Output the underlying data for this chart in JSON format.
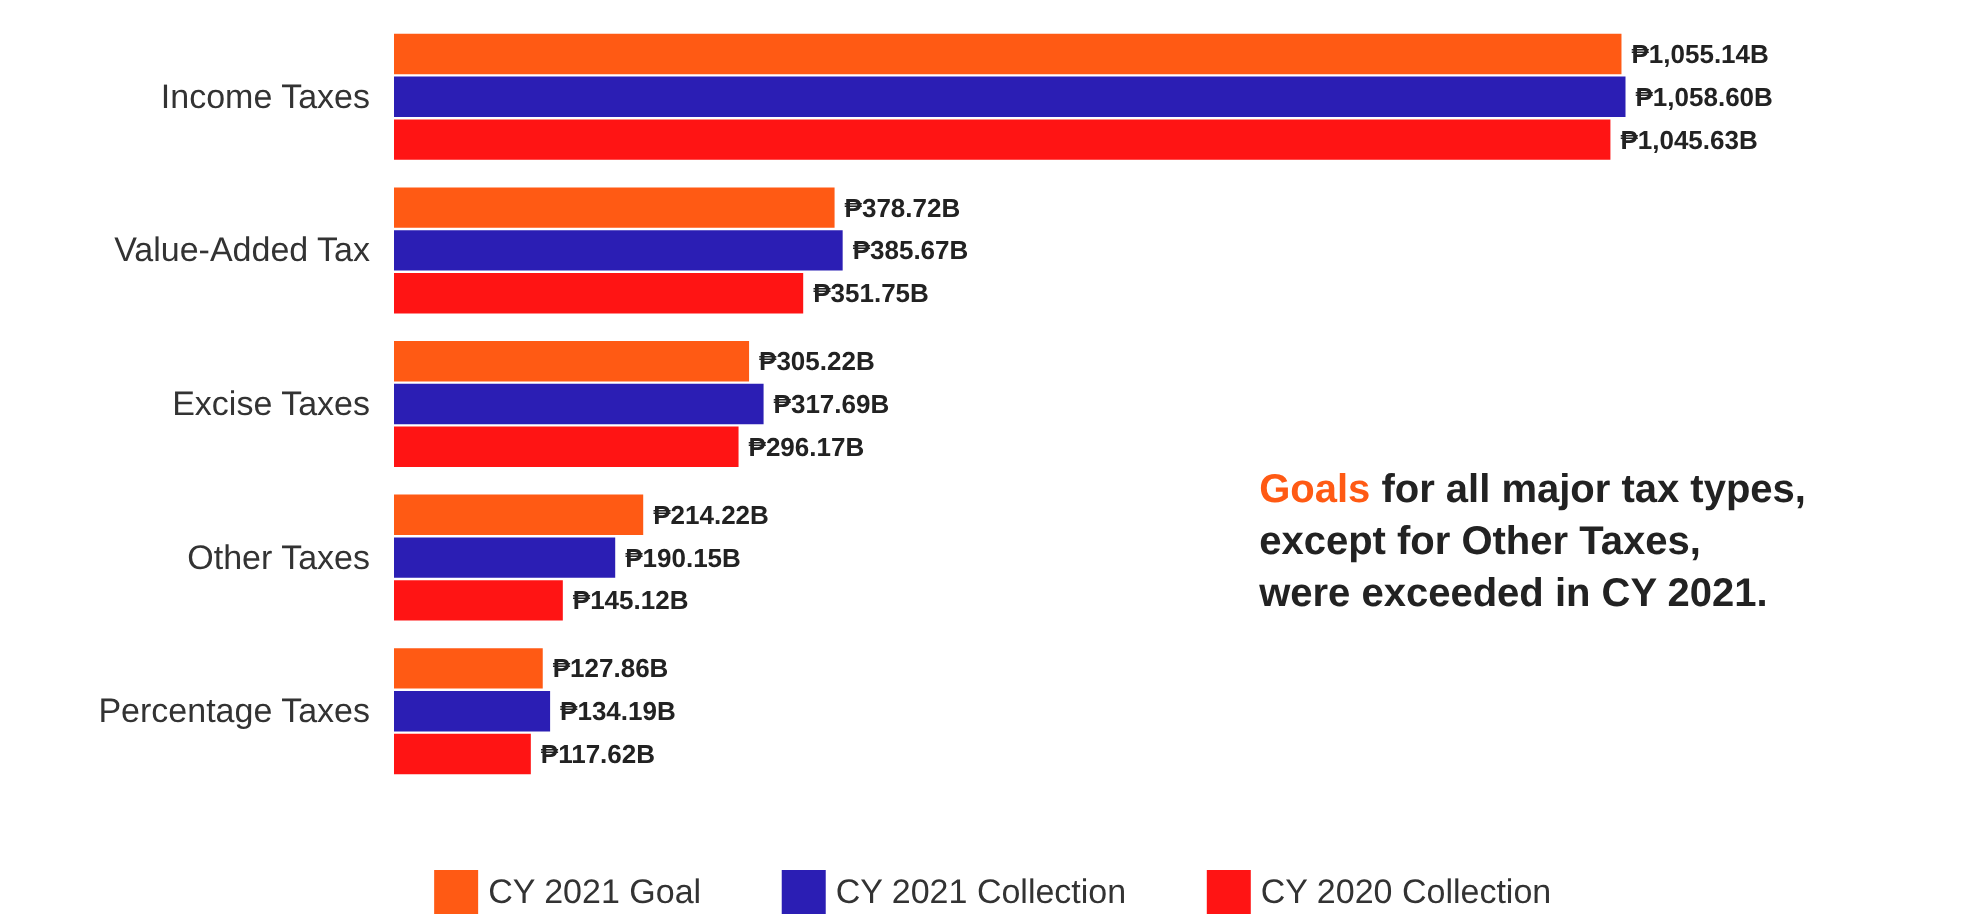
{
  "chart_data": {
    "type": "bar",
    "orientation": "horizontal",
    "categories": [
      "Income Taxes",
      "Value-Added Tax",
      "Excise Taxes",
      "Other Taxes",
      "Percentage Taxes"
    ],
    "series": [
      {
        "name": "CY 2021 Goal",
        "color": "#ff5a14",
        "values": [
          1055.14,
          378.72,
          305.22,
          214.22,
          127.86
        ],
        "value_labels": [
          "₱1,055.14B",
          "₱378.72B",
          "₱305.22B",
          "₱214.22B",
          "₱127.86B"
        ]
      },
      {
        "name": "CY 2021 Collection",
        "color": "#2b1eb4",
        "values": [
          1058.6,
          385.67,
          317.69,
          190.15,
          134.19
        ],
        "value_labels": [
          "₱1,058.60B",
          "₱385.67B",
          "₱317.69B",
          "₱190.15B",
          "₱134.19B"
        ]
      },
      {
        "name": "CY 2020 Collection",
        "color": "#ff1414",
        "values": [
          1045.63,
          351.75,
          296.17,
          145.12,
          117.62
        ],
        "value_labels": [
          "₱1,045.63B",
          "₱351.75B",
          "₱296.17B",
          "₱145.12B",
          "₱117.62B"
        ]
      }
    ],
    "annotations": [
      "Goals for all major tax types,\nexcept for Other Taxes,\nwere exceeded in CY 2021."
    ],
    "legend": "bottom",
    "grid": false
  }
}
